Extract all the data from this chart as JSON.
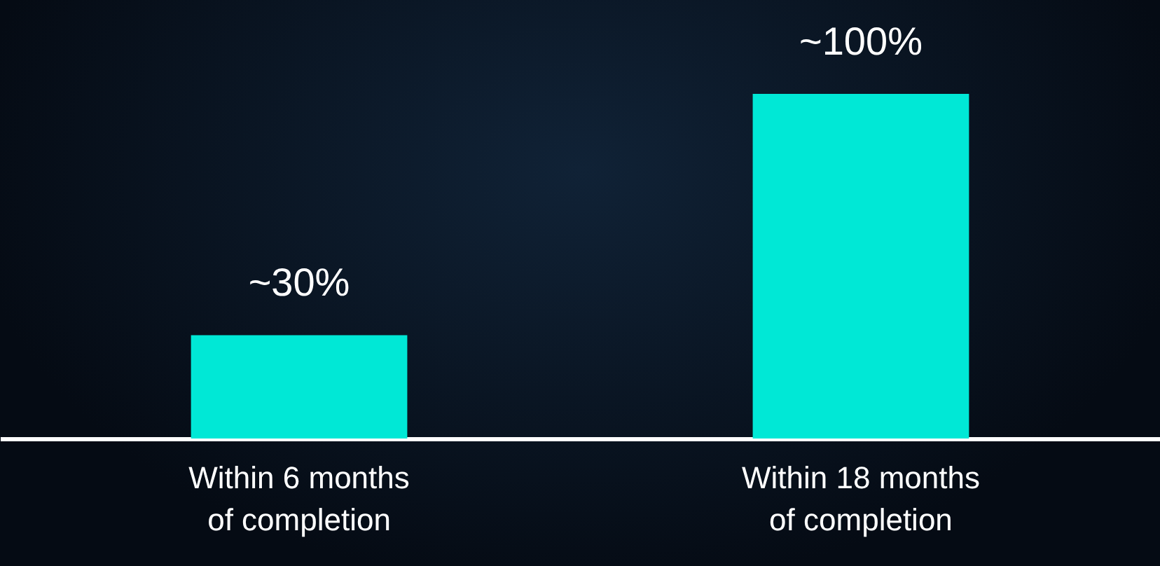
{
  "chart_data": {
    "type": "bar",
    "categories": [
      "Within 6 months of completion",
      "Within 18 months of completion"
    ],
    "values": [
      30,
      100
    ],
    "value_labels": [
      "~30%",
      "~100%"
    ],
    "color": "#00e8d6",
    "tick_labels": "x"
  }
}
